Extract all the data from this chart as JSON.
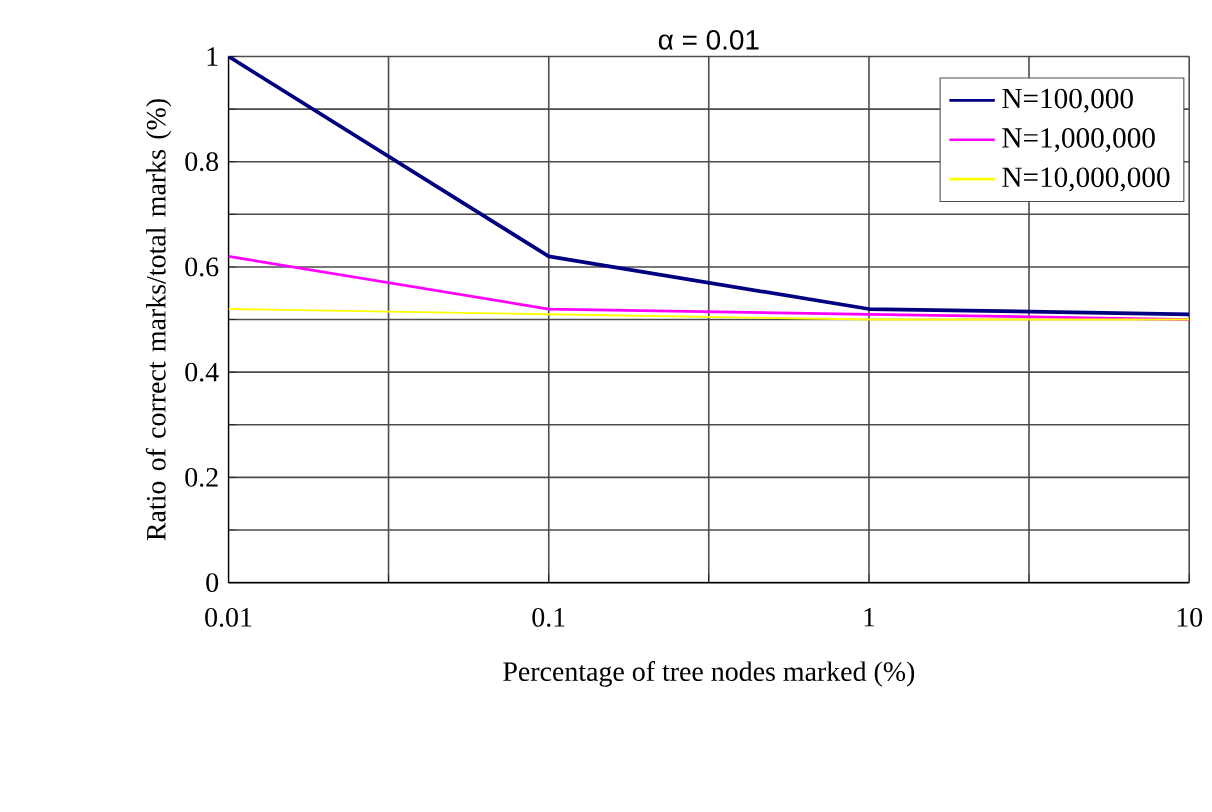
{
  "chart_data": {
    "type": "line",
    "title": "α = 0.01",
    "xlabel": "Percentage of tree nodes marked (%)",
    "ylabel": "Ratio of correct marks/total marks (%)",
    "x": [
      0.01,
      0.1,
      1,
      10
    ],
    "series": [
      {
        "name": "N=100,000",
        "color": "#000080",
        "values": [
          1.0,
          0.62,
          0.52,
          0.51
        ]
      },
      {
        "name": "N=1,000,000",
        "color": "#ff00ff",
        "values": [
          0.62,
          0.52,
          0.51,
          0.5
        ]
      },
      {
        "name": "N=10,000,000",
        "color": "#ffff00",
        "values": [
          0.52,
          0.51,
          0.5,
          0.5
        ]
      }
    ],
    "log": "x",
    "xlim": [
      0.01,
      10
    ],
    "ylim": [
      0,
      1
    ],
    "xticks": [
      0.01,
      {
        "value": 0.0316,
        "label": null
      },
      0.1,
      {
        "value": 0.316,
        "label": null
      },
      1,
      {
        "value": 3.16,
        "label": null
      },
      10
    ],
    "yticks": [
      0,
      {
        "value": 0.1,
        "label": null
      },
      0.2,
      {
        "value": 0.3,
        "label": null
      },
      0.4,
      {
        "value": 0.5,
        "label": null
      },
      0.6,
      {
        "value": 0.7,
        "label": null
      },
      0.8,
      {
        "value": 0.9,
        "label": null
      },
      1
    ],
    "grid": true,
    "legend": "top right",
    "marker": "none",
    "line_style": "solid"
  }
}
